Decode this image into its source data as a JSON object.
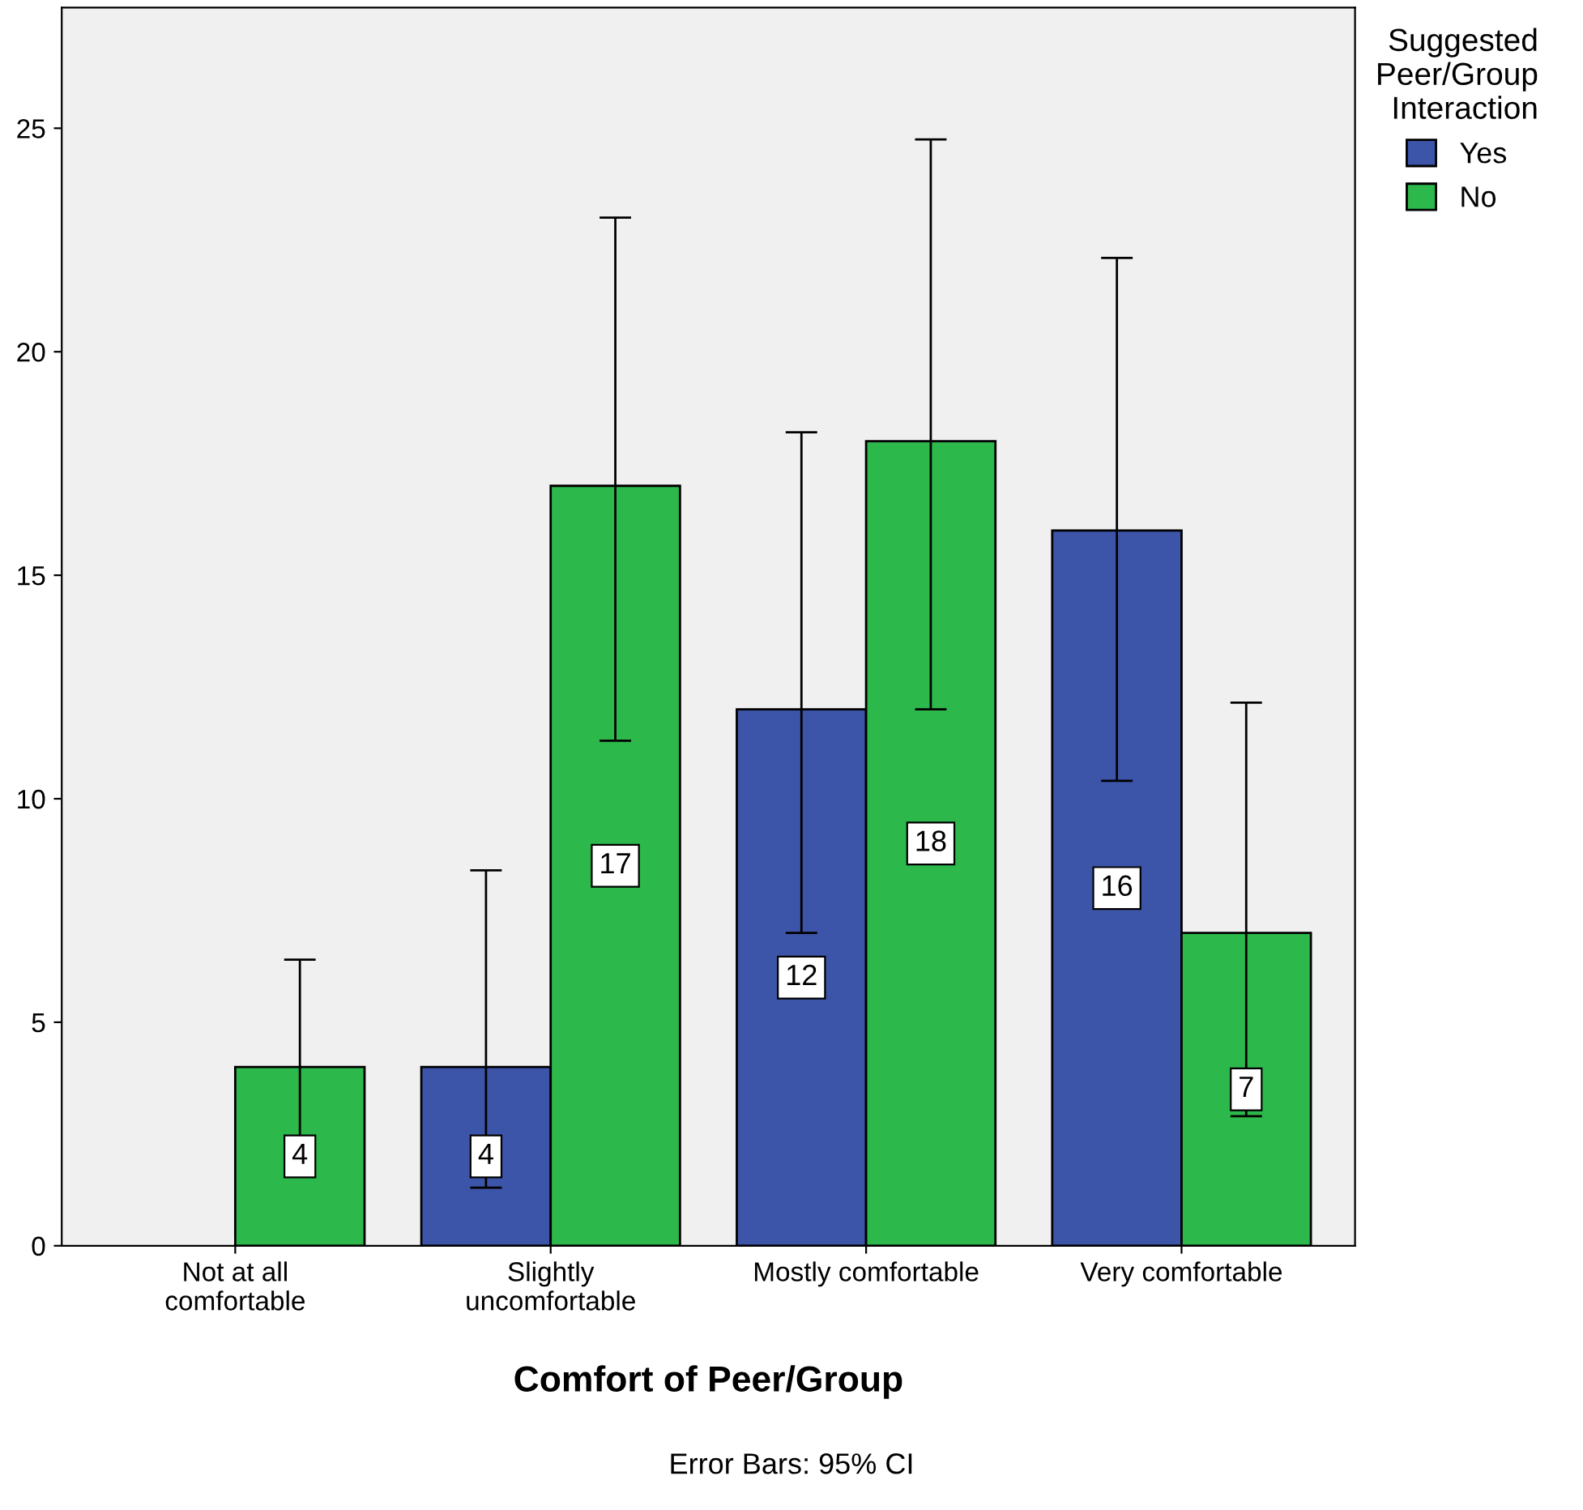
{
  "chart_data": {
    "type": "bar",
    "xlabel": "Comfort of Peer/Group",
    "legend_title": "Suggested\nPeer/Group\nInteraction",
    "categories": [
      "Not at all\ncomfortable",
      "Slightly\nuncomfortable",
      "Mostly comfortable",
      "Very comfortable"
    ],
    "series": [
      {
        "name": "Yes",
        "color": "#3d55a8",
        "values": [
          null,
          4,
          12,
          16
        ],
        "errors": [
          null,
          [
            1.3,
            8.4
          ],
          [
            7.0,
            18.2
          ],
          [
            10.4,
            22.1
          ]
        ]
      },
      {
        "name": "No",
        "color": "#2db84b",
        "values": [
          4,
          17,
          18,
          7
        ],
        "errors": [
          [
            1.6,
            6.4
          ],
          [
            11.3,
            23.0
          ],
          [
            12.0,
            24.75
          ],
          [
            2.9,
            12.15
          ]
        ]
      }
    ],
    "ylim": [
      0,
      27.7
    ],
    "yticks": [
      0,
      5,
      10,
      15,
      20,
      25
    ],
    "grid": false,
    "legend": "top right",
    "data_labels": true,
    "annotations": [
      "Error Bars: 95% CI"
    ]
  }
}
